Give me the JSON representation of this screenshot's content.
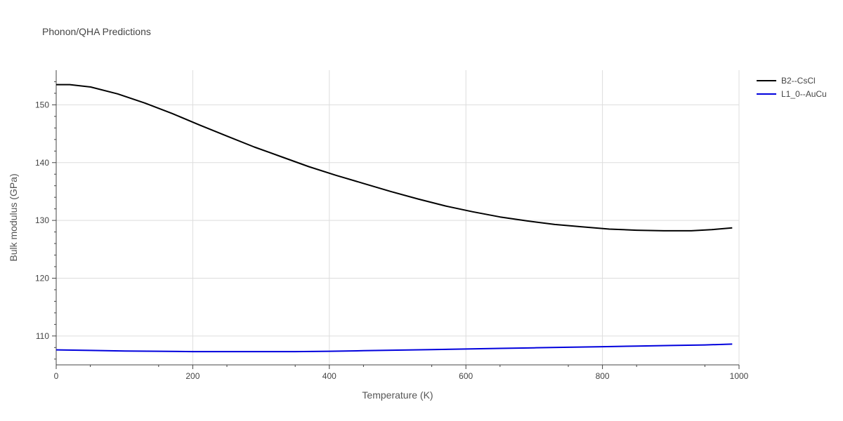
{
  "chart_data": {
    "type": "line",
    "title": "Phonon/QHA Predictions",
    "xlabel": "Temperature (K)",
    "ylabel": "Bulk modulus (GPa)",
    "xlim": [
      0,
      1000
    ],
    "ylim": [
      105,
      156
    ],
    "x_ticks": [
      0,
      200,
      400,
      600,
      800,
      1000
    ],
    "y_ticks": [
      110,
      120,
      130,
      140,
      150
    ],
    "x_tick_labels": [
      "0",
      "200",
      "400",
      "600",
      "800",
      "1000"
    ],
    "y_tick_labels": [
      "110",
      "120",
      "130",
      "140",
      "150"
    ],
    "grid": true,
    "legend_position": "top-right",
    "series": [
      {
        "name": "B2--CsCl",
        "color": "#000000",
        "x": [
          0,
          20,
          50,
          90,
          130,
          170,
          210,
          250,
          290,
          330,
          370,
          410,
          450,
          490,
          530,
          570,
          610,
          650,
          690,
          730,
          770,
          810,
          850,
          890,
          930,
          960,
          990
        ],
        "y": [
          153.5,
          153.5,
          153.1,
          151.9,
          150.3,
          148.5,
          146.5,
          144.6,
          142.7,
          141.0,
          139.3,
          137.8,
          136.4,
          135.0,
          133.7,
          132.5,
          131.5,
          130.6,
          129.9,
          129.3,
          128.9,
          128.5,
          128.3,
          128.2,
          128.2,
          128.4,
          128.7
        ]
      },
      {
        "name": "L1_0--AuCu",
        "color": "#0000dd",
        "x": [
          0,
          50,
          100,
          150,
          200,
          250,
          300,
          350,
          400,
          450,
          500,
          550,
          600,
          650,
          700,
          750,
          800,
          850,
          900,
          950,
          990
        ],
        "y": [
          107.6,
          107.5,
          107.4,
          107.35,
          107.3,
          107.3,
          107.3,
          107.3,
          107.35,
          107.45,
          107.55,
          107.65,
          107.75,
          107.85,
          107.95,
          108.05,
          108.15,
          108.25,
          108.35,
          108.45,
          108.6
        ]
      }
    ]
  }
}
